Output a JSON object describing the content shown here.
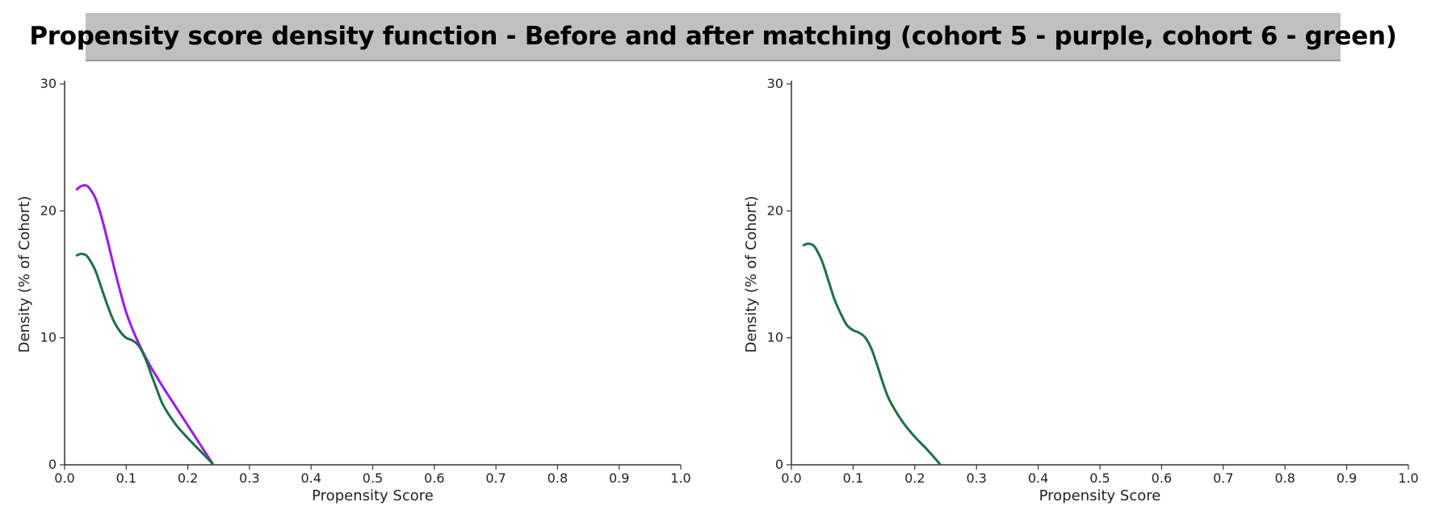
{
  "header": {
    "title": "Propensity score density function - Before and after matching (cohort 5 - purple, cohort 6 - green)"
  },
  "colors": {
    "purple": "#9b19f5",
    "green": "#1e7046",
    "axis": "#333333"
  },
  "chart_data": [
    {
      "type": "line",
      "panel": "before-matching",
      "xlabel": "Propensity Score",
      "ylabel": "Density (% of Cohort)",
      "xlim": [
        0,
        1.0
      ],
      "ylim": [
        0,
        30
      ],
      "xticks": [
        "0.0",
        "0.1",
        "0.2",
        "0.3",
        "0.4",
        "0.5",
        "0.6",
        "0.7",
        "0.8",
        "0.9",
        "1.0"
      ],
      "yticks": [
        "0",
        "10",
        "20",
        "30"
      ],
      "series": [
        {
          "color": "purple",
          "x": [
            0.02,
            0.025,
            0.03,
            0.035,
            0.04,
            0.05,
            0.06,
            0.07,
            0.08,
            0.09,
            0.1,
            0.11,
            0.12,
            0.13,
            0.14,
            0.15,
            0.16,
            0.18,
            0.2,
            0.22,
            0.24
          ],
          "y": [
            21.7,
            21.9,
            22.0,
            22.0,
            21.8,
            21.0,
            19.5,
            17.6,
            15.6,
            13.7,
            12.0,
            10.7,
            9.6,
            8.6,
            7.7,
            6.9,
            6.1,
            4.6,
            3.1,
            1.6,
            0.1
          ]
        },
        {
          "color": "green",
          "x": [
            0.02,
            0.025,
            0.03,
            0.035,
            0.04,
            0.05,
            0.06,
            0.07,
            0.08,
            0.09,
            0.1,
            0.11,
            0.12,
            0.13,
            0.14,
            0.15,
            0.16,
            0.18,
            0.2,
            0.22,
            0.24
          ],
          "y": [
            16.5,
            16.6,
            16.6,
            16.5,
            16.2,
            15.3,
            13.9,
            12.5,
            11.3,
            10.5,
            10.0,
            9.8,
            9.4,
            8.5,
            7.2,
            5.9,
            4.7,
            3.2,
            2.1,
            1.1,
            0.1
          ]
        }
      ]
    },
    {
      "type": "line",
      "panel": "after-matching",
      "xlabel": "Propensity Score",
      "ylabel": "Density (% of Cohort)",
      "xlim": [
        0,
        1.0
      ],
      "ylim": [
        0,
        30
      ],
      "xticks": [
        "0.0",
        "0.1",
        "0.2",
        "0.3",
        "0.4",
        "0.5",
        "0.6",
        "0.7",
        "0.8",
        "0.9",
        "1.0"
      ],
      "yticks": [
        "0",
        "10",
        "20",
        "30"
      ],
      "series": [
        {
          "color": "green",
          "x": [
            0.02,
            0.025,
            0.03,
            0.035,
            0.04,
            0.05,
            0.06,
            0.07,
            0.08,
            0.09,
            0.1,
            0.11,
            0.12,
            0.13,
            0.14,
            0.15,
            0.16,
            0.18,
            0.2,
            0.22,
            0.24
          ],
          "y": [
            17.3,
            17.4,
            17.4,
            17.3,
            17.0,
            16.0,
            14.5,
            13.0,
            11.9,
            11.0,
            10.6,
            10.4,
            10.0,
            9.1,
            7.7,
            6.2,
            5.0,
            3.4,
            2.2,
            1.2,
            0.1
          ]
        }
      ]
    }
  ]
}
